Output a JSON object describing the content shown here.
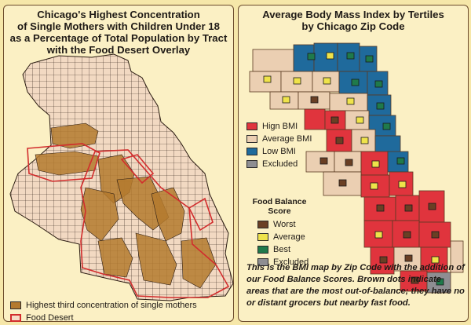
{
  "left_panel": {
    "title_lines": [
      "Chicago's Highest Concentration",
      "of Single Mothers with Children Under 18",
      "as a Percentage of Total Population by Tract",
      "with the Food Desert Overlay"
    ],
    "legend": [
      {
        "label": "Highest third concentration of single mothers",
        "color": "#b47a2e"
      },
      {
        "label": "Food Desert",
        "color": "#d22d2d"
      }
    ]
  },
  "right_panel": {
    "title_lines": [
      "Average Body Mass Index by Tertiles",
      "by Chicago Zip Code"
    ],
    "bmi_legend": [
      {
        "label": "Hign BMI",
        "color": "#e0343d"
      },
      {
        "label": "Average BMI",
        "color": "#ebcfb2"
      },
      {
        "label": "Low BMI",
        "color": "#1f6a9c"
      },
      {
        "label": "Excluded",
        "color": "#8e8e92"
      }
    ],
    "food_balance_title": [
      "Food Balance",
      "Score"
    ],
    "food_balance_legend": [
      {
        "label": "Worst",
        "color": "#6a3f24"
      },
      {
        "label": "Average",
        "color": "#efe34a"
      },
      {
        "label": "Best",
        "color": "#1f7a4b"
      },
      {
        "label": "Excluded",
        "color": "#8e8e92"
      }
    ],
    "note": "This is the BMI map by Zip Code with the addition of our Food Balance Scores. Brown dots indicate areas that are the most out-of-balance; they have no or distant grocers but nearby fast food."
  },
  "colors": {
    "background": "#f6e7a9",
    "tract_line": "#2b1c12",
    "tract_fill": "#f2d9c2",
    "high_single_mothers": "#b47a2e",
    "food_desert_outline": "#d22d2d",
    "high_bmi": "#e0343d",
    "average_bmi": "#ebcfb2",
    "low_bmi": "#1f6a9c",
    "excluded": "#8e8e92"
  }
}
